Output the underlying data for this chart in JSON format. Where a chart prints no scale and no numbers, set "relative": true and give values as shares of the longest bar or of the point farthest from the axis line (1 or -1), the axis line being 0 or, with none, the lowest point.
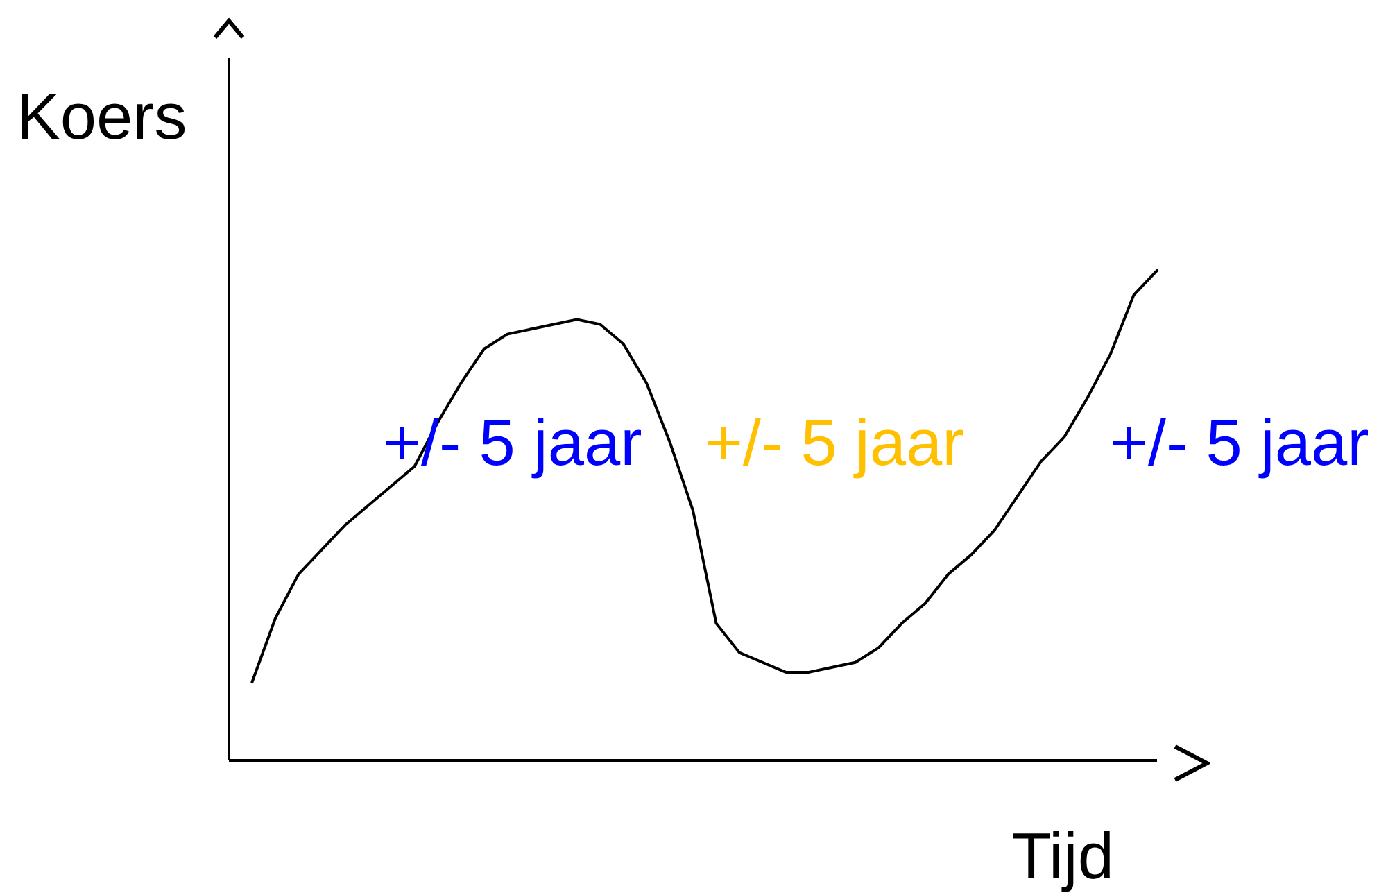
{
  "chart_data": {
    "type": "line",
    "relative": true,
    "xlabel": "Tijd",
    "ylabel": "Koers",
    "categories": [
      null,
      null,
      null,
      null,
      null,
      null,
      null,
      null,
      null,
      null,
      null,
      null,
      null,
      null,
      null,
      null,
      null,
      null,
      null,
      null,
      null,
      null,
      null,
      null,
      null,
      null,
      null,
      null,
      null,
      null,
      null,
      null,
      null,
      null,
      null,
      null,
      null,
      null,
      null,
      null,
      null
    ],
    "series": [
      {
        "color": "#000000",
        "values": [
          null,
          0.16,
          0.29,
          0.38,
          0.43,
          0.48,
          0.52,
          0.56,
          0.6,
          0.69,
          0.77,
          0.84,
          0.87,
          0.88,
          0.89,
          0.9,
          0.89,
          0.85,
          0.77,
          0.65,
          0.51,
          0.28,
          0.22,
          0.2,
          0.18,
          0.18,
          0.19,
          0.2,
          0.23,
          0.28,
          0.32,
          0.38,
          0.42,
          0.47,
          0.54,
          0.61,
          0.66,
          0.74,
          0.83,
          0.95,
          1.0
        ]
      }
    ],
    "annotations": [
      "+/- 5 jaar",
      "+/- 5 jaar",
      "+/- 5 jaar"
    ],
    "marker": "none",
    "line_style": "solid"
  }
}
